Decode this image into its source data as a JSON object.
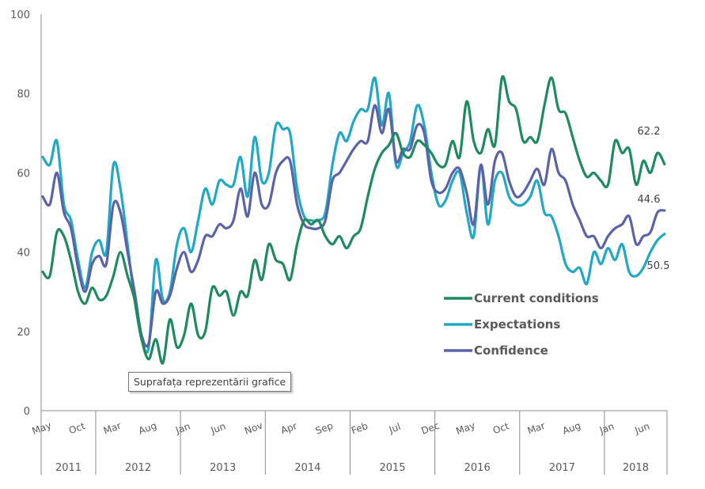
{
  "chart_data": {
    "type": "line",
    "title": "",
    "xlabel": "",
    "ylabel": "",
    "ylim": [
      0,
      100
    ],
    "yticks": [
      "0",
      "20",
      "40",
      "60",
      "80",
      "100"
    ],
    "ytick_values": [
      0,
      20,
      40,
      60,
      80,
      100
    ],
    "start": "May 2011",
    "end": "Sep 2018",
    "frequency": "monthly",
    "month_tick_labels": [
      {
        "label": "May",
        "month_index": 0
      },
      {
        "label": "Oct",
        "month_index": 5
      },
      {
        "label": "Mar",
        "month_index": 10
      },
      {
        "label": "Aug",
        "month_index": 15
      },
      {
        "label": "Jan",
        "month_index": 20
      },
      {
        "label": "Jun",
        "month_index": 25
      },
      {
        "label": "Nov",
        "month_index": 30
      },
      {
        "label": "Apr",
        "month_index": 35
      },
      {
        "label": "Sep",
        "month_index": 40
      },
      {
        "label": "Feb",
        "month_index": 45
      },
      {
        "label": "Jul",
        "month_index": 50
      },
      {
        "label": "Dec",
        "month_index": 55
      },
      {
        "label": "May",
        "month_index": 60
      },
      {
        "label": "Oct",
        "month_index": 65
      },
      {
        "label": "Mar",
        "month_index": 70
      },
      {
        "label": "Aug",
        "month_index": 75
      },
      {
        "label": "Jan",
        "month_index": 80
      },
      {
        "label": "Jun",
        "month_index": 85
      }
    ],
    "year_groups": [
      {
        "label": "2011",
        "start_index": 0,
        "end_index": 7
      },
      {
        "label": "2012",
        "start_index": 8,
        "end_index": 19
      },
      {
        "label": "2013",
        "start_index": 20,
        "end_index": 31
      },
      {
        "label": "2014",
        "start_index": 32,
        "end_index": 43
      },
      {
        "label": "2015",
        "start_index": 44,
        "end_index": 55
      },
      {
        "label": "2016",
        "start_index": 56,
        "end_index": 67
      },
      {
        "label": "2017",
        "start_index": 68,
        "end_index": 79
      },
      {
        "label": "2018",
        "start_index": 80,
        "end_index": 88
      }
    ],
    "series": [
      {
        "name": "Current conditions",
        "color": "#1e8a5e",
        "end_label": "62.2",
        "values": [
          35,
          34,
          45,
          44,
          38,
          30,
          27,
          31,
          28,
          29,
          34,
          40,
          34,
          28,
          18,
          13,
          18,
          12,
          23,
          16,
          19,
          27,
          19,
          20,
          31,
          29,
          30,
          24,
          30,
          29,
          38,
          33,
          42,
          38,
          37,
          33,
          42,
          48,
          47,
          48,
          44,
          42,
          44,
          41,
          44,
          46,
          54,
          61,
          65,
          67,
          70,
          65,
          64,
          68,
          67,
          65,
          62,
          62,
          68,
          64,
          78,
          68,
          65,
          71,
          67,
          84,
          78,
          76,
          68,
          69,
          68,
          77,
          84,
          76,
          75,
          69,
          63,
          59,
          60,
          58,
          57,
          68,
          65,
          66,
          57,
          63,
          60,
          65,
          62.2
        ]
      },
      {
        "name": "Expectations",
        "color": "#20a8c4",
        "end_label": "44.6",
        "values": [
          64,
          62,
          68,
          52,
          48,
          38,
          31,
          40,
          43,
          40,
          62,
          56,
          42,
          28,
          18,
          16,
          38,
          28,
          30,
          42,
          46,
          40,
          48,
          56,
          52,
          58,
          57,
          57,
          64,
          54,
          69,
          58,
          60,
          72,
          71,
          70,
          56,
          49,
          48,
          48,
          50,
          62,
          70,
          68,
          73,
          76,
          76,
          84,
          72,
          80,
          62,
          65,
          68,
          77,
          72,
          60,
          52,
          53,
          58,
          60,
          50,
          44,
          62,
          47,
          58,
          60,
          54,
          52,
          52,
          54,
          58,
          50,
          49,
          44,
          37,
          35,
          36,
          32,
          40,
          37,
          41,
          38,
          42,
          35,
          34,
          36,
          40,
          43,
          44.6
        ]
      },
      {
        "name": "Confidence",
        "color": "#5b63a8",
        "end_label": "50.5",
        "values": [
          54,
          52,
          60,
          50,
          46,
          36,
          30,
          37,
          39,
          37,
          52,
          50,
          40,
          30,
          19,
          17,
          30,
          27,
          29,
          36,
          40,
          35,
          38,
          44,
          44,
          47,
          46,
          48,
          56,
          49,
          60,
          52,
          52,
          60,
          63,
          63,
          52,
          47,
          46,
          46,
          48,
          58,
          60,
          63,
          66,
          68,
          68,
          77,
          70,
          76,
          63,
          66,
          66,
          72,
          70,
          58,
          55,
          56,
          60,
          61,
          55,
          47,
          62,
          52,
          63,
          65,
          58,
          54,
          55,
          58,
          61,
          57,
          66,
          60,
          58,
          52,
          48,
          44,
          44,
          41,
          44,
          46,
          47,
          49,
          42,
          44,
          45,
          50,
          50.5
        ]
      }
    ],
    "legend": {
      "position": "bottom-right",
      "entries": [
        "Current conditions",
        "Expectations",
        "Confidence"
      ]
    },
    "grid": false
  },
  "tooltip": {
    "text": "Suprafața reprezentării grafice"
  }
}
